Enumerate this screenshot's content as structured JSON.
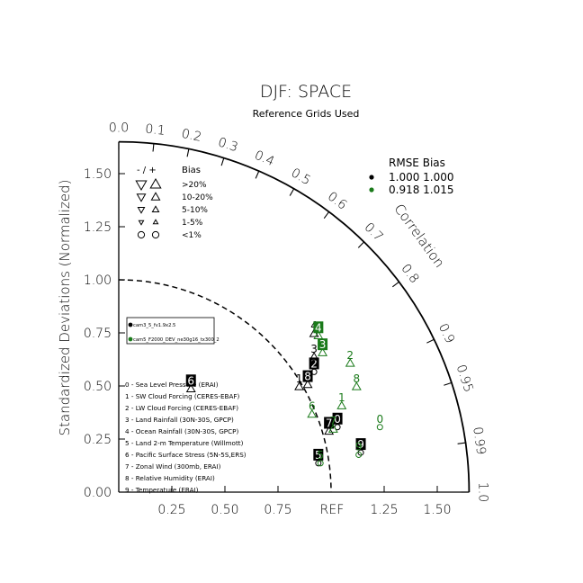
{
  "chart_data": {
    "type": "taylor-diagram",
    "title": "DJF: SPACE",
    "subtitle": "Reference Grids Used",
    "ylabel": "Standardized Deviations (Normalized)",
    "arc_label": "Correlation",
    "ref_label": "REF",
    "std_max": 1.65,
    "x_ticks": [
      {
        "value": 0.25,
        "label": "0.25"
      },
      {
        "value": 0.5,
        "label": "0.50"
      },
      {
        "value": 0.75,
        "label": "0.75"
      },
      {
        "value": 1.25,
        "label": "1.25"
      },
      {
        "value": 1.5,
        "label": "1.50"
      }
    ],
    "y_ticks": [
      {
        "value": 0.0,
        "label": "0.00"
      },
      {
        "value": 0.25,
        "label": "0.25"
      },
      {
        "value": 0.5,
        "label": "0.50"
      },
      {
        "value": 0.75,
        "label": "0.75"
      },
      {
        "value": 1.0,
        "label": "1.00"
      },
      {
        "value": 1.25,
        "label": "1.25"
      },
      {
        "value": 1.5,
        "label": "1.50"
      }
    ],
    "corr_ticks": [
      {
        "value": 0.0,
        "label": "0.0"
      },
      {
        "value": 0.1,
        "label": "0.1"
      },
      {
        "value": 0.2,
        "label": "0.2"
      },
      {
        "value": 0.3,
        "label": "0.3"
      },
      {
        "value": 0.4,
        "label": "0.4"
      },
      {
        "value": 0.5,
        "label": "0.5"
      },
      {
        "value": 0.6,
        "label": "0.6"
      },
      {
        "value": 0.7,
        "label": "0.7"
      },
      {
        "value": 0.8,
        "label": "0.8"
      },
      {
        "value": 0.9,
        "label": "0.9"
      },
      {
        "value": 0.95,
        "label": "0.95"
      },
      {
        "value": 0.99,
        "label": "0.99"
      },
      {
        "value": 1.0,
        "label": "1.0"
      }
    ],
    "bias_legend": {
      "header_signs": "- / +",
      "header_bias": "Bias",
      "rows": [
        {
          "label": ">20%",
          "size": 1.0,
          "circle": false
        },
        {
          "label": "10-20%",
          "size": 0.8,
          "circle": false
        },
        {
          "label": "5-10%",
          "size": 0.62,
          "circle": false
        },
        {
          "label": "1-5%",
          "size": 0.45,
          "circle": false
        },
        {
          "label": "<1%",
          "size": 0.5,
          "circle": true
        }
      ]
    },
    "stats_legend": {
      "header": "RMSE  Bias",
      "rows": [
        {
          "color": "#000000",
          "text": "1.000 1.000"
        },
        {
          "color": "#1a7a1a",
          "text": "0.918 1.015"
        }
      ]
    },
    "case_legend": [
      {
        "color": "#000000",
        "label": "cam3_5_fv1.9x2.5"
      },
      {
        "color": "#1a7a1a",
        "label": "cam5_F2000_DEV_ne30g16_tx300_2"
      }
    ],
    "variable_legend": [
      "0 - Sea Level Pressure (ERAI)",
      "1 - SW Cloud Forcing (CERES-EBAF)",
      "2 - LW Cloud Forcing (CERES-EBAF)",
      "3 - Land Rainfall (30N-30S, GPCP)",
      "4 - Ocean Rainfall (30N-30S, GPCP)",
      "5 - Land 2-m Temperature (Willmott)",
      "6 - Pacific Surface Stress (5N-5S,ERS)",
      "7 - Zonal Wind (300mb, ERAI)",
      "8 - Relative Humidity (ERAI)",
      "9 - Temperature (ERAI)"
    ],
    "series": [
      {
        "color": "#000000",
        "points": [
          {
            "id": "0",
            "x": 1.03,
            "y": 0.34,
            "marker": "circle",
            "boxed": true
          },
          {
            "id": "1",
            "x": 0.85,
            "y": 0.53,
            "marker": "up",
            "boxed": false
          },
          {
            "id": "2",
            "x": 0.92,
            "y": 0.6,
            "marker": "circle",
            "boxed": true
          },
          {
            "id": "3",
            "x": 0.92,
            "y": 0.67,
            "marker": "up",
            "boxed": false
          },
          {
            "id": "4",
            "x": 0.92,
            "y": 0.78,
            "marker": "up",
            "boxed": false
          },
          {
            "id": "5",
            "x": 0.94,
            "y": 0.17,
            "marker": "circle",
            "boxed": true
          },
          {
            "id": "6",
            "x": 0.34,
            "y": 0.52,
            "marker": "up",
            "boxed": true
          },
          {
            "id": "7",
            "x": 0.99,
            "y": 0.32,
            "marker": "up",
            "boxed": true
          },
          {
            "id": "8",
            "x": 0.89,
            "y": 0.54,
            "marker": "up",
            "boxed": true
          },
          {
            "id": "9",
            "x": 1.14,
            "y": 0.22,
            "marker": "circle",
            "boxed": true
          }
        ]
      },
      {
        "color": "#1a7a1a",
        "points": [
          {
            "id": "0",
            "x": 1.23,
            "y": 0.34,
            "marker": "circle",
            "boxed": false
          },
          {
            "id": "1",
            "x": 1.05,
            "y": 0.44,
            "marker": "up",
            "boxed": false
          },
          {
            "id": "2",
            "x": 1.09,
            "y": 0.64,
            "marker": "up",
            "boxed": false
          },
          {
            "id": "3",
            "x": 0.96,
            "y": 0.69,
            "marker": "up",
            "boxed": true
          },
          {
            "id": "4",
            "x": 0.94,
            "y": 0.77,
            "marker": "up",
            "boxed": true
          },
          {
            "id": "5",
            "x": 0.95,
            "y": 0.17,
            "marker": "circle",
            "boxed": false
          },
          {
            "id": "6",
            "x": 0.91,
            "y": 0.4,
            "marker": "up",
            "boxed": false
          },
          {
            "id": "7",
            "x": 1.01,
            "y": 0.33,
            "marker": "up",
            "boxed": false
          },
          {
            "id": "8",
            "x": 1.12,
            "y": 0.53,
            "marker": "up",
            "boxed": false
          },
          {
            "id": "9",
            "x": 1.13,
            "y": 0.21,
            "marker": "circle",
            "boxed": false
          }
        ]
      }
    ]
  }
}
